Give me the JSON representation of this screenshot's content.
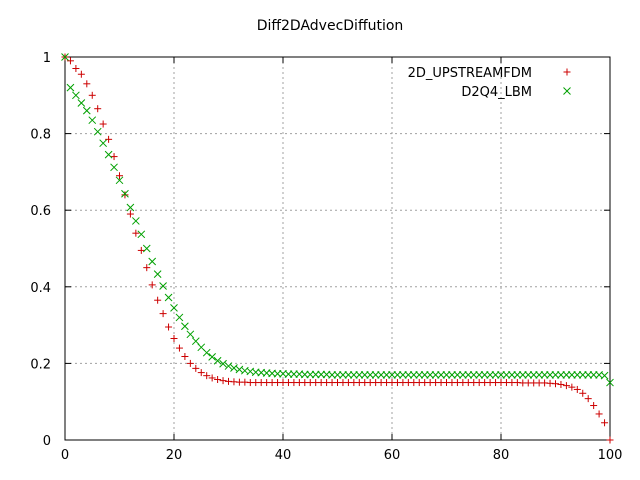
{
  "chart_data": {
    "type": "scatter",
    "title": "Diff2DAdvecDiffution",
    "xlabel": "",
    "ylabel": "",
    "xlim": [
      0,
      100
    ],
    "ylim": [
      0,
      1
    ],
    "xticks": [
      0,
      20,
      40,
      60,
      80,
      100
    ],
    "yticks": [
      0,
      0.2,
      0.4,
      0.6,
      0.8,
      1
    ],
    "xtick_labels": [
      "0",
      "20",
      "40",
      "60",
      "80",
      "100"
    ],
    "ytick_labels": [
      "0",
      "0.2",
      "0.4",
      "0.6",
      "0.8",
      "1"
    ],
    "grid": true,
    "legend_position": "top-right",
    "series": [
      {
        "name": "2D_UPSTREAMFDM",
        "marker": "plus",
        "color": "#cc0000",
        "x": [
          0,
          1,
          2,
          3,
          4,
          5,
          6,
          7,
          8,
          9,
          10,
          11,
          12,
          13,
          14,
          15,
          16,
          17,
          18,
          19,
          20,
          21,
          22,
          23,
          24,
          25,
          26,
          27,
          28,
          29,
          30,
          31,
          32,
          33,
          34,
          35,
          36,
          37,
          38,
          39,
          40,
          41,
          42,
          43,
          44,
          45,
          46,
          47,
          48,
          49,
          50,
          51,
          52,
          53,
          54,
          55,
          56,
          57,
          58,
          59,
          60,
          61,
          62,
          63,
          64,
          65,
          66,
          67,
          68,
          69,
          70,
          71,
          72,
          73,
          74,
          75,
          76,
          77,
          78,
          79,
          80,
          81,
          82,
          83,
          84,
          85,
          86,
          87,
          88,
          89,
          90,
          91,
          92,
          93,
          94,
          95,
          96,
          97,
          98,
          99,
          100
        ],
        "y": [
          1.0,
          0.99,
          0.97,
          0.955,
          0.93,
          0.9,
          0.865,
          0.825,
          0.785,
          0.74,
          0.69,
          0.64,
          0.59,
          0.54,
          0.495,
          0.45,
          0.405,
          0.365,
          0.33,
          0.295,
          0.265,
          0.24,
          0.218,
          0.2,
          0.187,
          0.176,
          0.168,
          0.162,
          0.158,
          0.155,
          0.153,
          0.152,
          0.151,
          0.151,
          0.15,
          0.15,
          0.15,
          0.15,
          0.15,
          0.15,
          0.15,
          0.15,
          0.15,
          0.15,
          0.15,
          0.15,
          0.15,
          0.15,
          0.15,
          0.15,
          0.15,
          0.15,
          0.15,
          0.15,
          0.15,
          0.15,
          0.15,
          0.15,
          0.15,
          0.15,
          0.15,
          0.15,
          0.15,
          0.15,
          0.15,
          0.15,
          0.15,
          0.15,
          0.15,
          0.15,
          0.15,
          0.15,
          0.15,
          0.15,
          0.15,
          0.15,
          0.15,
          0.15,
          0.15,
          0.15,
          0.15,
          0.15,
          0.15,
          0.15,
          0.149,
          0.149,
          0.149,
          0.149,
          0.149,
          0.148,
          0.147,
          0.145,
          0.142,
          0.138,
          0.132,
          0.122,
          0.108,
          0.09,
          0.068,
          0.045,
          0.0
        ]
      },
      {
        "name": "D2Q4_LBM",
        "marker": "cross",
        "color": "#00a000",
        "x": [
          0,
          1,
          2,
          3,
          4,
          5,
          6,
          7,
          8,
          9,
          10,
          11,
          12,
          13,
          14,
          15,
          16,
          17,
          18,
          19,
          20,
          21,
          22,
          23,
          24,
          25,
          26,
          27,
          28,
          29,
          30,
          31,
          32,
          33,
          34,
          35,
          36,
          37,
          38,
          39,
          40,
          41,
          42,
          43,
          44,
          45,
          46,
          47,
          48,
          49,
          50,
          51,
          52,
          53,
          54,
          55,
          56,
          57,
          58,
          59,
          60,
          61,
          62,
          63,
          64,
          65,
          66,
          67,
          68,
          69,
          70,
          71,
          72,
          73,
          74,
          75,
          76,
          77,
          78,
          79,
          80,
          81,
          82,
          83,
          84,
          85,
          86,
          87,
          88,
          89,
          90,
          91,
          92,
          93,
          94,
          95,
          96,
          97,
          98,
          99,
          100
        ],
        "y": [
          1.0,
          0.92,
          0.9,
          0.88,
          0.86,
          0.835,
          0.805,
          0.775,
          0.745,
          0.712,
          0.678,
          0.643,
          0.607,
          0.572,
          0.537,
          0.5,
          0.466,
          0.433,
          0.402,
          0.372,
          0.345,
          0.32,
          0.297,
          0.276,
          0.258,
          0.242,
          0.228,
          0.217,
          0.207,
          0.199,
          0.193,
          0.188,
          0.184,
          0.181,
          0.179,
          0.177,
          0.176,
          0.175,
          0.174,
          0.173,
          0.173,
          0.172,
          0.172,
          0.172,
          0.171,
          0.171,
          0.171,
          0.171,
          0.171,
          0.17,
          0.17,
          0.17,
          0.17,
          0.17,
          0.17,
          0.17,
          0.17,
          0.17,
          0.17,
          0.17,
          0.17,
          0.17,
          0.17,
          0.17,
          0.17,
          0.17,
          0.17,
          0.17,
          0.17,
          0.17,
          0.17,
          0.17,
          0.17,
          0.17,
          0.17,
          0.17,
          0.17,
          0.17,
          0.17,
          0.17,
          0.17,
          0.17,
          0.17,
          0.17,
          0.17,
          0.17,
          0.17,
          0.17,
          0.17,
          0.17,
          0.17,
          0.17,
          0.17,
          0.17,
          0.17,
          0.17,
          0.17,
          0.17,
          0.17,
          0.168,
          0.15
        ]
      }
    ]
  }
}
